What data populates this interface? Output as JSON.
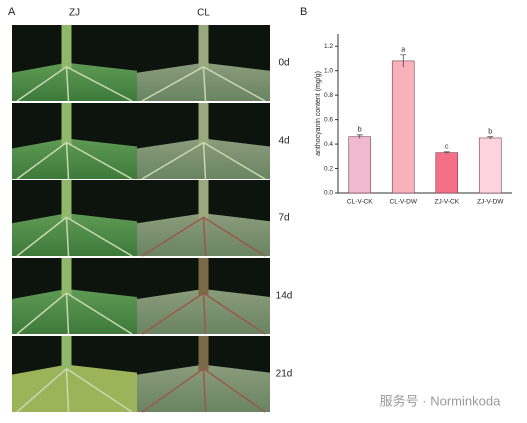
{
  "panel_a": {
    "label": "A",
    "columns": [
      "ZJ",
      "CL"
    ],
    "rows": [
      "0d",
      "4d",
      "7d",
      "14d",
      "21d"
    ]
  },
  "chart_data": {
    "type": "bar",
    "panel_label": "B",
    "ylabel": "anthocyanin content (mg/g)",
    "categories": [
      "CL-V-CK",
      "CL-V-DW",
      "ZJ-V-CK",
      "ZJ-V-DW"
    ],
    "values": [
      0.46,
      1.08,
      0.33,
      0.45
    ],
    "errors": [
      0.015,
      0.05,
      0.006,
      0.01
    ],
    "significance": [
      "b",
      "a",
      "c",
      "b"
    ],
    "colors": [
      "#f1b9cd",
      "#f9b2bb",
      "#f56f86",
      "#fcd4dd"
    ],
    "ylim": [
      0,
      1.3
    ],
    "yticks": [
      {
        "value": 0,
        "label": "0.0"
      },
      0.2,
      0.4,
      0.6,
      0.8,
      {
        "value": 1,
        "label": "1.0"
      },
      1.2
    ]
  },
  "watermark": "服务号 · Norminkoda"
}
